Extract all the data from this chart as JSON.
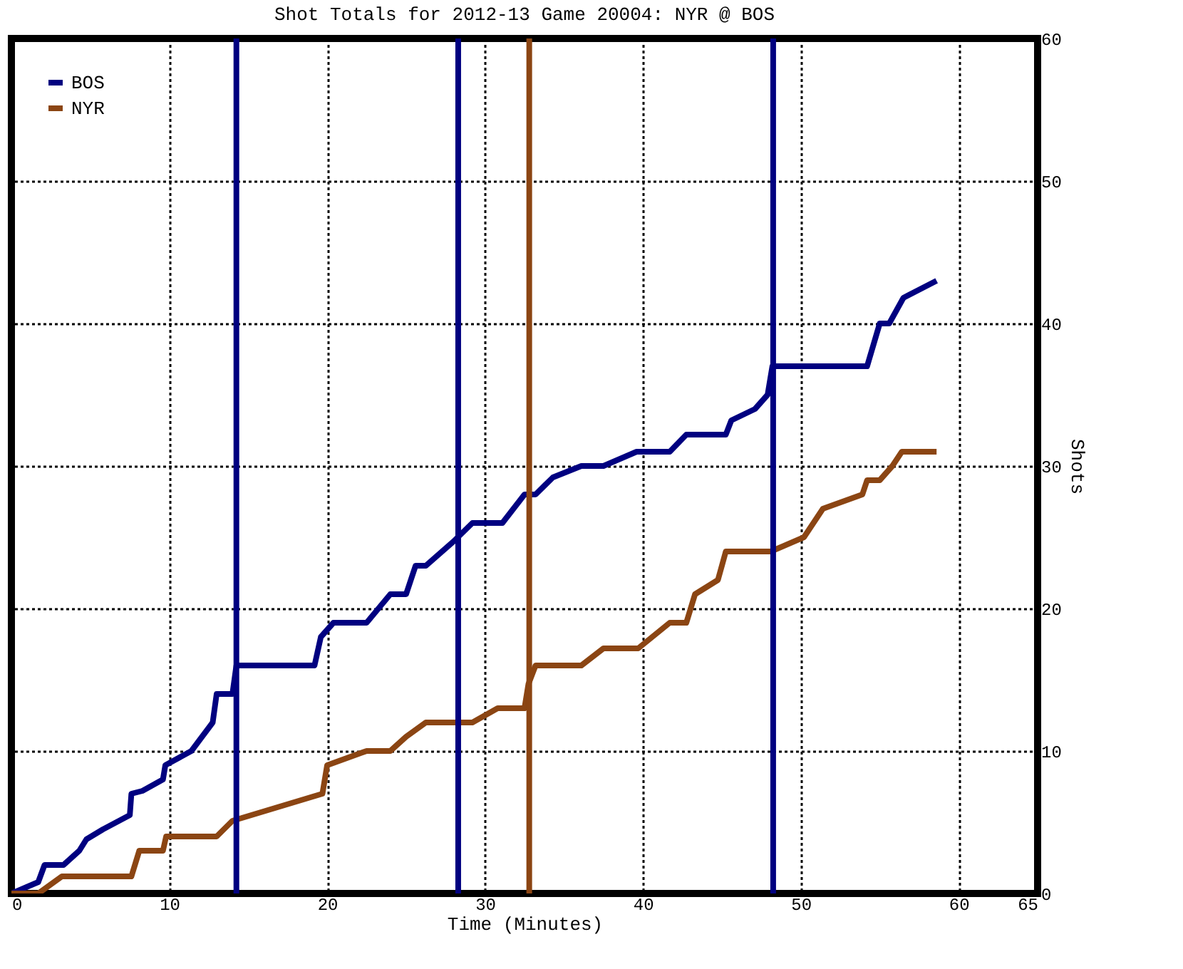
{
  "chart_data": {
    "type": "line",
    "title": "Shot Totals for 2012-13 Game 20004: NYR @ BOS",
    "xlabel": "Time (Minutes)",
    "ylabel": "Shots",
    "xlim": [
      0,
      65
    ],
    "xticks": [
      0,
      10,
      20,
      30,
      40,
      50,
      60,
      65
    ],
    "ylim": [
      0,
      60
    ],
    "yticks": [
      0,
      10,
      20,
      30,
      40,
      50,
      60
    ],
    "grid": true,
    "legend": "top left",
    "series": [
      {
        "name": "BOS",
        "color": "#000080",
        "x": [
          0,
          1.7,
          2.1,
          3.3,
          4.3,
          4.75,
          5.8,
          7.5,
          7.6,
          8.3,
          9.6,
          9.75,
          11.4,
          12.75,
          13,
          14,
          14.25,
          19.2,
          19.6,
          20.4,
          22.5,
          24,
          25,
          25.6,
          26.25,
          28,
          29.2,
          31.1,
          32.5,
          33.2,
          34.3,
          36.1,
          37.5,
          39.6,
          41.7,
          42.75,
          45.25,
          45.6,
          47.1,
          47.9,
          48.2,
          54.2,
          55,
          55.6,
          56.5,
          58.6
        ],
        "values": [
          0,
          0.8,
          2,
          2,
          3,
          3.8,
          4.5,
          5.5,
          7,
          7.2,
          8,
          9,
          10,
          12,
          14,
          14,
          16,
          16,
          18,
          19,
          19,
          21,
          21,
          23,
          23,
          24.7,
          26,
          26,
          28,
          28,
          29.2,
          30,
          30,
          31,
          31,
          32.2,
          32.2,
          33.2,
          34,
          35,
          37,
          37,
          40,
          40,
          41.8,
          43
        ]
      },
      {
        "name": "NYR",
        "color": "#8b4513",
        "x": [
          0,
          1.7,
          3.2,
          7.6,
          8.1,
          9.6,
          9.8,
          13,
          14,
          19.7,
          20,
          22.5,
          24,
          25,
          26.25,
          29.2,
          30.8,
          32.5,
          32.75,
          33.2,
          36.1,
          37.5,
          39.7,
          41.7,
          42.75,
          43.3,
          44.75,
          45.25,
          48.1,
          50.2,
          51.4,
          53.9,
          54.2,
          55,
          55.8,
          56.4,
          58.6
        ],
        "values": [
          0,
          0,
          1.2,
          1.2,
          3,
          3,
          4,
          4,
          5.1,
          7,
          9,
          10,
          10,
          11,
          12,
          12,
          13,
          13,
          14.7,
          16,
          16,
          17.2,
          17.2,
          19,
          19,
          21,
          22,
          24,
          24,
          25,
          27,
          28,
          29,
          29,
          30,
          31,
          31
        ]
      }
    ],
    "ref_lines": [
      {
        "axis": "x",
        "value": 14.25,
        "color": "#000080"
      },
      {
        "axis": "x",
        "value": 28.3,
        "color": "#000080"
      },
      {
        "axis": "x",
        "value": 32.8,
        "color": "#8b4513"
      },
      {
        "axis": "x",
        "value": 48.25,
        "color": "#000080"
      }
    ]
  }
}
